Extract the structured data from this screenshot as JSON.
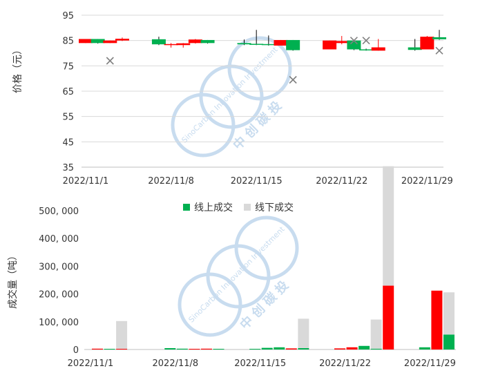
{
  "watermark": {
    "brand_en": "SinoCarbon Innovation Investment",
    "brand_cn": "中创碳投",
    "color": "#c8dcef"
  },
  "colors": {
    "up": "#ff0000",
    "down": "#00b050",
    "offline": "#d9d9d9",
    "cross": "#808080",
    "grid": "#d9d9d9",
    "axis": "#bfbfbf"
  },
  "chart_data": [
    {
      "type": "candlestick",
      "ylabel": "价格（元）",
      "ylim": [
        35,
        95
      ],
      "yticks": [
        35,
        45,
        55,
        65,
        75,
        85,
        95
      ],
      "grid": true,
      "x_range": [
        0,
        29
      ],
      "xtick_labels": [
        {
          "x": 0,
          "label": "2022/11/1"
        },
        {
          "x": 7,
          "label": "2022/11/8"
        },
        {
          "x": 14,
          "label": "2022/11/15"
        },
        {
          "x": 21,
          "label": "2022/11/22"
        },
        {
          "x": 28,
          "label": "2022/11/29"
        }
      ],
      "candles": [
        {
          "date": "2022/11/1",
          "open": 84.0,
          "close": 85.6,
          "high": 85.6,
          "low": 84.0
        },
        {
          "date": "2022/11/2",
          "open": 85.6,
          "close": 84.0,
          "high": 85.6,
          "low": 83.8
        },
        {
          "date": "2022/11/3",
          "open": 84.0,
          "close": 85.0,
          "high": 85.0,
          "low": 84.0
        },
        {
          "date": "2022/11/4",
          "open": 85.0,
          "close": 85.7,
          "high": 86.2,
          "low": 84.8
        },
        {
          "date": "2022/11/7",
          "open": 85.5,
          "close": 83.5,
          "high": 86.5,
          "low": 83.2
        },
        {
          "date": "2022/11/8",
          "open": 83.6,
          "close": 83.6,
          "high": 84.0,
          "low": 82.2
        },
        {
          "date": "2022/11/9",
          "open": 83.2,
          "close": 83.9,
          "high": 84.0,
          "low": 82.2
        },
        {
          "date": "2022/11/10",
          "open": 84.0,
          "close": 85.4,
          "high": 85.6,
          "low": 83.8
        },
        {
          "date": "2022/11/11",
          "open": 85.2,
          "close": 84.0,
          "high": 85.2,
          "low": 83.8
        },
        {
          "date": "2022/11/14",
          "open": 84.0,
          "close": 83.5,
          "high": 85.4,
          "low": 83.2
        },
        {
          "date": "2022/11/15",
          "open": 83.7,
          "close": 83.4,
          "high": 89.2,
          "low": 83.2
        },
        {
          "date": "2022/11/16",
          "open": 83.6,
          "close": 83.2,
          "high": 87.0,
          "low": 83.0
        },
        {
          "date": "2022/11/17",
          "open": 83.0,
          "close": 85.2,
          "high": 85.2,
          "low": 83.0
        },
        {
          "date": "2022/11/18",
          "open": 85.2,
          "close": 81.2,
          "high": 85.2,
          "low": 81.0
        },
        {
          "date": "2022/11/21",
          "open": 81.5,
          "close": 85.0,
          "high": 85.0,
          "low": 81.5
        },
        {
          "date": "2022/11/22",
          "open": 84.0,
          "close": 84.8,
          "high": 86.8,
          "low": 83.5
        },
        {
          "date": "2022/11/23",
          "open": 85.0,
          "close": 81.5,
          "high": 85.0,
          "low": 81.2
        },
        {
          "date": "2022/11/24",
          "open": 81.5,
          "close": 81.3,
          "high": 81.8,
          "low": 81.0
        },
        {
          "date": "2022/11/25",
          "open": 81.0,
          "close": 82.3,
          "high": 85.6,
          "low": 81.0
        },
        {
          "date": "2022/11/28",
          "open": 82.3,
          "close": 81.3,
          "high": 85.6,
          "low": 81.0
        },
        {
          "date": "2022/11/29",
          "open": 81.5,
          "close": 86.5,
          "high": 86.8,
          "low": 81.5
        },
        {
          "date": "2022/11/30",
          "open": 86.3,
          "close": 85.5,
          "high": 89.2,
          "low": 85.3
        }
      ],
      "offline_price_points": [
        {
          "date": "2022/11/3",
          "value": 77.0
        },
        {
          "date": "2022/11/18",
          "value": 69.5
        },
        {
          "date": "2022/11/23",
          "value": 85.0
        },
        {
          "date": "2022/11/24",
          "value": 85.0
        },
        {
          "date": "2022/11/30",
          "value": 81.0
        }
      ]
    },
    {
      "type": "bar",
      "ylabel": "成交量（吨）",
      "ylim": [
        0,
        500000
      ],
      "yticks": [
        0,
        100000,
        200000,
        300000,
        400000,
        500000
      ],
      "ytick_labels": [
        "0",
        "100, 000",
        "200, 000",
        "300, 000",
        "400, 000",
        "500, 000"
      ],
      "grid": false,
      "legend": {
        "position": "top",
        "entries": [
          {
            "name": "线上成交",
            "color": "#00b050"
          },
          {
            "name": "线下成交",
            "color": "#d9d9d9"
          }
        ]
      },
      "xtick_labels": [
        "2022/11/1",
        "2022/11/8",
        "2022/11/15",
        "2022/11/22",
        "2022/11/29"
      ],
      "xtick_slot": [
        0,
        7,
        14,
        21,
        28
      ],
      "online_bars": [
        {
          "date": "2022/11/1",
          "value": 3000,
          "color": "#ff0000"
        },
        {
          "date": "2022/11/2",
          "value": 2500,
          "color": "#00b050"
        },
        {
          "date": "2022/11/3",
          "value": 2500,
          "color": "#ff0000"
        },
        {
          "date": "2022/11/7",
          "value": 5000,
          "color": "#00b050"
        },
        {
          "date": "2022/11/8",
          "value": 3000,
          "color": "#00b050"
        },
        {
          "date": "2022/11/9",
          "value": 2500,
          "color": "#ff0000"
        },
        {
          "date": "2022/11/10",
          "value": 3000,
          "color": "#ff0000"
        },
        {
          "date": "2022/11/11",
          "value": 2500,
          "color": "#00b050"
        },
        {
          "date": "2022/11/14",
          "value": 2500,
          "color": "#00b050"
        },
        {
          "date": "2022/11/15",
          "value": 6000,
          "color": "#00b050"
        },
        {
          "date": "2022/11/16",
          "value": 8000,
          "color": "#00b050"
        },
        {
          "date": "2022/11/17",
          "value": 4000,
          "color": "#ff0000"
        },
        {
          "date": "2022/11/18",
          "value": 5000,
          "color": "#00b050"
        },
        {
          "date": "2022/11/21",
          "value": 4000,
          "color": "#ff0000"
        },
        {
          "date": "2022/11/22",
          "value": 8000,
          "color": "#ff0000"
        },
        {
          "date": "2022/11/23",
          "value": 13000,
          "color": "#00b050"
        },
        {
          "date": "2022/11/24",
          "value": 3000,
          "color": "#00b050"
        },
        {
          "date": "2022/11/25",
          "value": 230000,
          "color": "#ff0000"
        },
        {
          "date": "2022/11/28",
          "value": 8000,
          "color": "#00b050"
        },
        {
          "date": "2022/11/29",
          "value": 212000,
          "color": "#ff0000"
        },
        {
          "date": "2022/11/30",
          "value": 54000,
          "color": "#00b050"
        }
      ],
      "offline_bars": [
        {
          "date": "2022/11/3",
          "value": 100000
        },
        {
          "date": "2022/11/18",
          "value": 106000
        },
        {
          "date": "2022/11/24",
          "value": 105000
        },
        {
          "date": "2022/11/25",
          "value": 430000
        },
        {
          "date": "2022/11/30",
          "value": 152000
        }
      ]
    }
  ]
}
